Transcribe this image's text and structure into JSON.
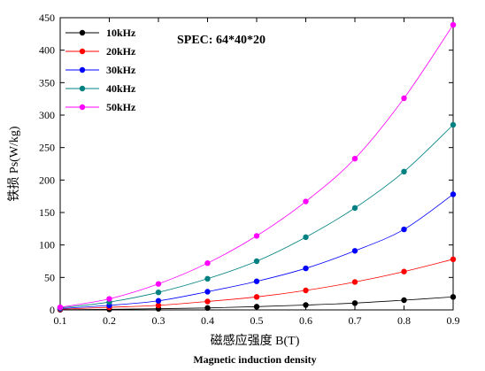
{
  "chart_data": {
    "type": "scatter",
    "annotation": "SPEC: 64*40*20",
    "xlabel": "磁感应强度 B(T)",
    "xlabel_sub": "Magnetic induction density",
    "ylabel": "铁损 Ps(W/kg)",
    "xlim": [
      0.1,
      0.9
    ],
    "ylim": [
      0,
      450
    ],
    "xticks": [
      "0.1",
      "0.2",
      "0.3",
      "0.4",
      "0.5",
      "0.6",
      "0.7",
      "0.8",
      "0.9"
    ],
    "yticks": [
      "0",
      "50",
      "100",
      "150",
      "200",
      "250",
      "300",
      "350",
      "400",
      "450"
    ],
    "legend_position": "top-left",
    "x": [
      0.1,
      0.2,
      0.3,
      0.4,
      0.5,
      0.6,
      0.7,
      0.8,
      0.9
    ],
    "series": [
      {
        "name": "10kHz",
        "color": "#000000",
        "values": [
          0.3,
          0.9,
          1.8,
          3,
          5,
          7.5,
          10.5,
          15,
          20
        ]
      },
      {
        "name": "20kHz",
        "color": "#ff0000",
        "values": [
          1,
          4,
          7,
          13,
          20,
          30,
          43,
          59,
          78
        ]
      },
      {
        "name": "30kHz",
        "color": "#0000ff",
        "values": [
          2,
          7,
          14,
          28,
          44,
          64,
          91,
          124,
          178
        ]
      },
      {
        "name": "40kHz",
        "color": "#008080",
        "values": [
          3,
          12,
          27,
          48,
          75,
          112,
          157,
          213,
          285
        ]
      },
      {
        "name": "50kHz",
        "color": "#ff00ff",
        "values": [
          4,
          17,
          40,
          72,
          114,
          167,
          233,
          326,
          439
        ]
      }
    ]
  }
}
